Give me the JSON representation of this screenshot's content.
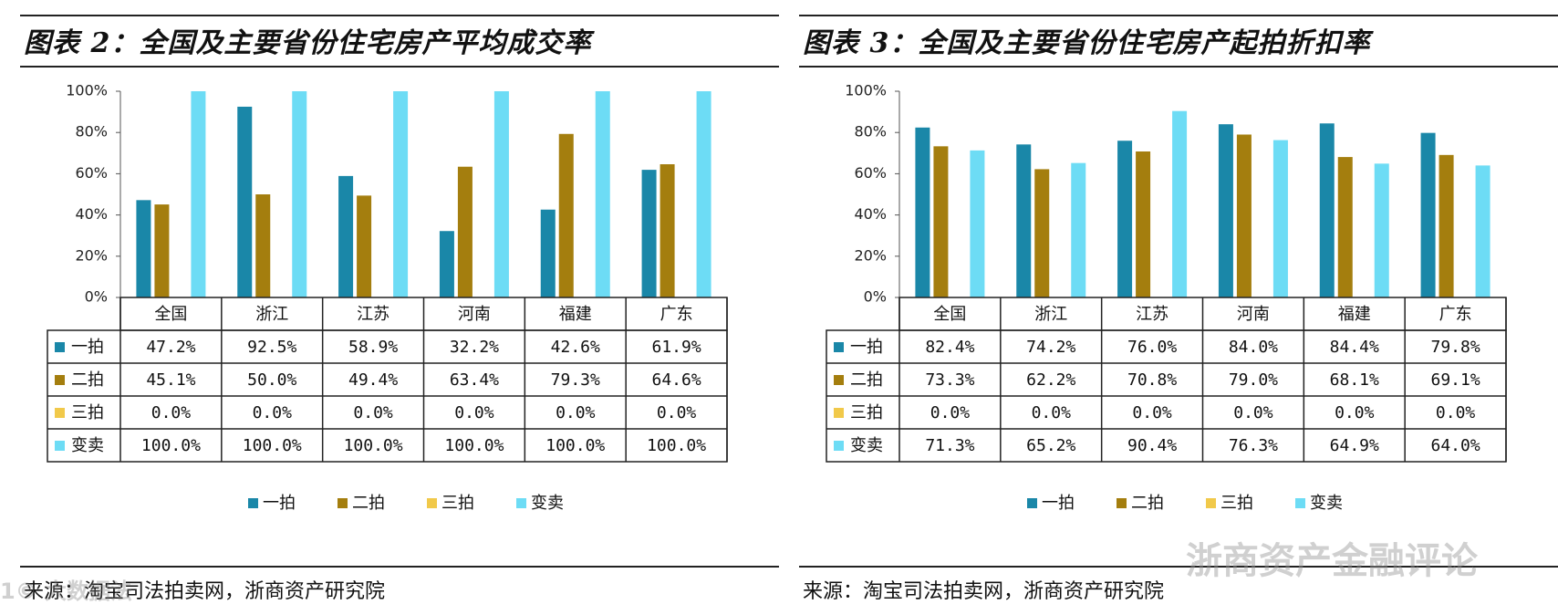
{
  "colors": {
    "yipai": "#1a87a8",
    "erpai": "#a47e0e",
    "sanpai": "#f1c94a",
    "biammai": "#6ddcf5"
  },
  "chart_data": [
    {
      "type": "bar",
      "title": "图表 2：全国及主要省份住宅房产平均成交率",
      "source": "来源：淘宝司法拍卖网，浙商资产研究院",
      "ytick_labels": [
        "100%",
        "80%",
        "60%",
        "40%",
        "20%",
        "0%"
      ],
      "ylim": [
        0,
        100
      ],
      "categories": [
        "全国",
        "浙江",
        "江苏",
        "河南",
        "福建",
        "广东"
      ],
      "series": [
        {
          "name": "一拍",
          "values": [
            47.2,
            92.5,
            58.9,
            32.2,
            42.6,
            61.9
          ],
          "labels": [
            "47.2%",
            "92.5%",
            "58.9%",
            "32.2%",
            "42.6%",
            "61.9%"
          ]
        },
        {
          "name": "二拍",
          "values": [
            45.1,
            50.0,
            49.4,
            63.4,
            79.3,
            64.6
          ],
          "labels": [
            "45.1%",
            "50.0%",
            "49.4%",
            "63.4%",
            "79.3%",
            "64.6%"
          ]
        },
        {
          "name": "三拍",
          "values": [
            0,
            0,
            0,
            0,
            0,
            0
          ],
          "labels": [
            "0.0%",
            "0.0%",
            "0.0%",
            "0.0%",
            "0.0%",
            "0.0%"
          ]
        },
        {
          "name": "变卖",
          "values": [
            100,
            100,
            100,
            100,
            100,
            100
          ],
          "labels": [
            "100.0%",
            "100.0%",
            "100.0%",
            "100.0%",
            "100.0%",
            "100.0%"
          ]
        }
      ]
    },
    {
      "type": "bar",
      "title": "图表 3：全国及主要省份住宅房产起拍折扣率",
      "source": "来源：淘宝司法拍卖网，浙商资产研究院",
      "ytick_labels": [
        "100%",
        "80%",
        "60%",
        "40%",
        "20%",
        "0%"
      ],
      "ylim": [
        0,
        100
      ],
      "categories": [
        "全国",
        "浙江",
        "江苏",
        "河南",
        "福建",
        "广东"
      ],
      "series": [
        {
          "name": "一拍",
          "values": [
            82.4,
            74.2,
            76.0,
            84.0,
            84.4,
            79.8
          ],
          "labels": [
            "82.4%",
            "74.2%",
            "76.0%",
            "84.0%",
            "84.4%",
            "79.8%"
          ]
        },
        {
          "name": "二拍",
          "values": [
            73.3,
            62.2,
            70.8,
            79.0,
            68.1,
            69.1
          ],
          "labels": [
            "73.3%",
            "62.2%",
            "70.8%",
            "79.0%",
            "68.1%",
            "69.1%"
          ]
        },
        {
          "name": "三拍",
          "values": [
            0,
            0,
            0,
            0,
            0,
            0
          ],
          "labels": [
            "0.0%",
            "0.0%",
            "0.0%",
            "0.0%",
            "0.0%",
            "0.0%"
          ]
        },
        {
          "name": "变卖",
          "values": [
            71.3,
            65.2,
            90.4,
            76.3,
            64.9,
            64.0
          ],
          "labels": [
            "71.3%",
            "65.2%",
            "90.4%",
            "76.3%",
            "64.9%",
            "64.0%"
          ]
        }
      ]
    }
  ],
  "watermarks": {
    "left": "1© 大数据法",
    "right": "浙商资产金融评论"
  }
}
